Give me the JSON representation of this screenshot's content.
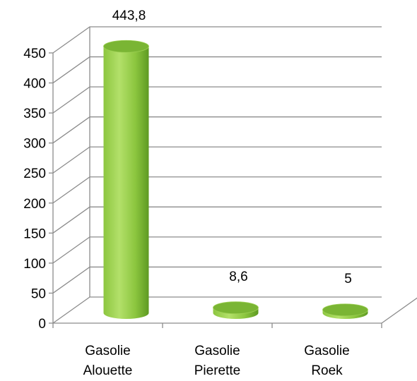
{
  "chart_data": {
    "type": "bar",
    "style": "3d-cylinder",
    "categories": [
      [
        "Gasolie",
        "Alouette"
      ],
      [
        "Gasolie",
        "Pierette"
      ],
      [
        "Gasolie",
        "Roek"
      ]
    ],
    "values": [
      443.8,
      8.6,
      5
    ],
    "data_labels": [
      "443,8",
      "8,6",
      "5"
    ],
    "ylim": [
      0,
      450
    ],
    "yticks": [
      "0",
      "50",
      "100",
      "150",
      "200",
      "250",
      "300",
      "350",
      "400",
      "450"
    ],
    "ytick_values": [
      0,
      50,
      100,
      150,
      200,
      250,
      300,
      350,
      400,
      450
    ],
    "grid": true,
    "legend": "none",
    "colors": {
      "bar_light": "#b3e06a",
      "bar_mid": "#8cc63f",
      "bar_dark": "#5e9a22",
      "bar_top": "#7ab534",
      "grid": "#8c8c8c"
    }
  }
}
